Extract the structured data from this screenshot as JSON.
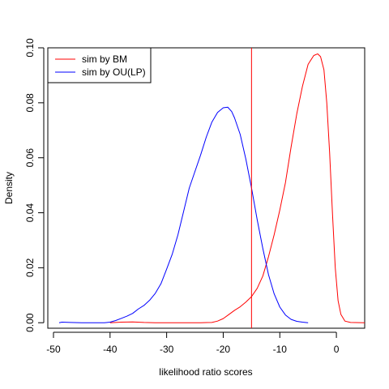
{
  "chart_data": {
    "type": "line",
    "xlabel": "likelihood ratio scores",
    "ylabel": "Density",
    "xlim": [
      -51,
      5
    ],
    "ylim": [
      -0.002,
      0.1
    ],
    "x_ticks": [
      -50,
      -40,
      -30,
      -20,
      -10,
      0
    ],
    "x_tick_labels": [
      "-50",
      "-40",
      "-30",
      "-20",
      "-10",
      "0"
    ],
    "y_ticks": [
      0.0,
      0.02,
      0.04,
      0.06,
      0.08,
      0.1
    ],
    "y_tick_labels": [
      "0.00",
      "0.02",
      "0.04",
      "0.06",
      "0.08",
      "0.10"
    ],
    "legend_position": "top-left",
    "vline": {
      "x": -15,
      "color": "#ff0000"
    },
    "series": [
      {
        "name": "sim by BM",
        "color": "#ff0000",
        "points": [
          [
            -40,
            0.0
          ],
          [
            -38,
            0.0002
          ],
          [
            -36,
            0.0003
          ],
          [
            -34,
            0.0001
          ],
          [
            -32,
            0.0
          ],
          [
            -28,
            0.0
          ],
          [
            -24,
            0.0
          ],
          [
            -22,
            0.0001
          ],
          [
            -21,
            0.0006
          ],
          [
            -20,
            0.0015
          ],
          [
            -19,
            0.003
          ],
          [
            -18,
            0.0045
          ],
          [
            -17,
            0.0058
          ],
          [
            -16,
            0.0075
          ],
          [
            -15,
            0.0095
          ],
          [
            -14,
            0.0125
          ],
          [
            -13,
            0.017
          ],
          [
            -12,
            0.024
          ],
          [
            -11,
            0.032
          ],
          [
            -10,
            0.041
          ],
          [
            -9,
            0.051
          ],
          [
            -8,
            0.064
          ],
          [
            -7,
            0.076
          ],
          [
            -6,
            0.086
          ],
          [
            -5,
            0.094
          ],
          [
            -4,
            0.0972
          ],
          [
            -3.3,
            0.0978
          ],
          [
            -2.8,
            0.0968
          ],
          [
            -2.2,
            0.092
          ],
          [
            -1.7,
            0.08
          ],
          [
            -1.2,
            0.062
          ],
          [
            -0.7,
            0.04
          ],
          [
            -0.2,
            0.02
          ],
          [
            0.3,
            0.008
          ],
          [
            0.8,
            0.003
          ],
          [
            1.5,
            0.0006
          ],
          [
            2.5,
            0.0001
          ],
          [
            5,
            0.0
          ]
        ]
      },
      {
        "name": "sim by OU(LP)",
        "color": "#0000ff",
        "points": [
          [
            -49,
            0.0
          ],
          [
            -48.5,
            0.0002
          ],
          [
            -47,
            0.0001
          ],
          [
            -45,
            0.0
          ],
          [
            -41,
            0.0
          ],
          [
            -40,
            0.0002
          ],
          [
            -39,
            0.0008
          ],
          [
            -38,
            0.0016
          ],
          [
            -37,
            0.0024
          ],
          [
            -36,
            0.0034
          ],
          [
            -35,
            0.005
          ],
          [
            -34,
            0.0063
          ],
          [
            -33,
            0.0082
          ],
          [
            -32,
            0.0107
          ],
          [
            -31,
            0.0142
          ],
          [
            -30,
            0.0195
          ],
          [
            -29,
            0.025
          ],
          [
            -28,
            0.032
          ],
          [
            -27,
            0.0405
          ],
          [
            -26,
            0.049
          ],
          [
            -25,
            0.055
          ],
          [
            -24,
            0.061
          ],
          [
            -23,
            0.0675
          ],
          [
            -22,
            0.073
          ],
          [
            -21,
            0.0765
          ],
          [
            -20,
            0.0782
          ],
          [
            -19.2,
            0.0784
          ],
          [
            -18.5,
            0.0768
          ],
          [
            -18,
            0.0745
          ],
          [
            -17,
            0.0685
          ],
          [
            -16,
            0.0595
          ],
          [
            -15,
            0.049
          ],
          [
            -14,
            0.0375
          ],
          [
            -13,
            0.027
          ],
          [
            -12,
            0.0175
          ],
          [
            -11,
            0.0105
          ],
          [
            -10,
            0.0057
          ],
          [
            -9,
            0.0028
          ],
          [
            -8,
            0.0012
          ],
          [
            -7,
            0.0005
          ],
          [
            -6,
            0.0002
          ],
          [
            -5,
            0.0
          ]
        ]
      }
    ]
  }
}
